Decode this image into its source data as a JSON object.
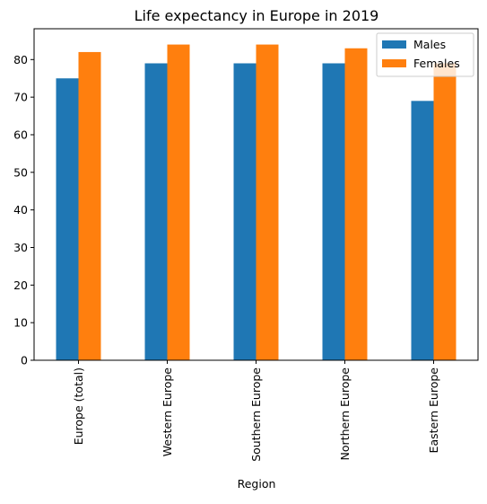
{
  "chart_data": {
    "type": "bar",
    "title": "Life expectancy in Europe in 2019",
    "xlabel": "Region",
    "ylabel": "",
    "categories": [
      "Europe (total)",
      "Western Europe",
      "Southern Europe",
      "Northern Europe",
      "Eastern Europe"
    ],
    "series": [
      {
        "name": "Males",
        "values": [
          75,
          79,
          79,
          79,
          69
        ],
        "color": "#1f77b4"
      },
      {
        "name": "Females",
        "values": [
          82,
          84,
          84,
          83,
          79
        ],
        "color": "#ff7f0e"
      }
    ],
    "ylim": [
      0,
      88.2
    ],
    "yticks": [
      0,
      10,
      20,
      30,
      40,
      50,
      60,
      70,
      80
    ],
    "grid": false,
    "legend_position": "top-right"
  }
}
